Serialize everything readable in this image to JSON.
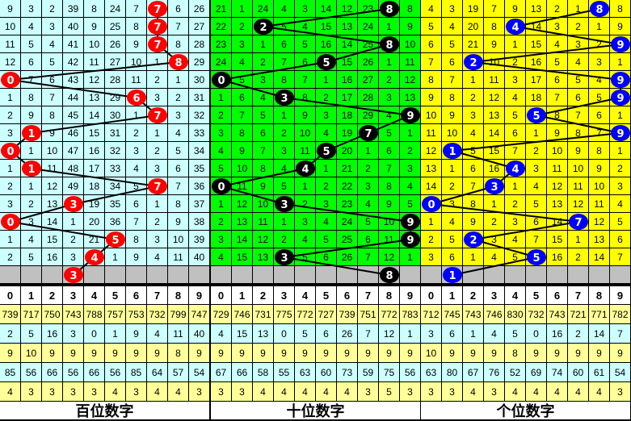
{
  "panels": [
    {
      "title": "百位数字",
      "bg": "#ccffff",
      "ball_color": "#ff0000",
      "headers": [
        "0",
        "1",
        "2",
        "3",
        "4",
        "5",
        "6",
        "7",
        "8",
        "9"
      ],
      "draws": [
        7,
        7,
        7,
        8,
        0,
        6,
        7,
        1,
        0,
        1,
        7,
        3,
        0,
        5,
        4,
        3
      ],
      "rows": [
        [
          9,
          3,
          2,
          39,
          8,
          24,
          7,
          7,
          6,
          26
        ],
        [
          10,
          4,
          3,
          40,
          9,
          25,
          8,
          7,
          7,
          27
        ],
        [
          11,
          5,
          4,
          41,
          10,
          26,
          9,
          7,
          8,
          28
        ],
        [
          12,
          6,
          5,
          42,
          11,
          27,
          10,
          1,
          8,
          29
        ],
        [
          0,
          7,
          6,
          43,
          12,
          28,
          11,
          2,
          1,
          30
        ],
        [
          1,
          8,
          7,
          44,
          13,
          29,
          6,
          3,
          2,
          31
        ],
        [
          2,
          9,
          8,
          45,
          14,
          30,
          1,
          7,
          3,
          32
        ],
        [
          3,
          1,
          9,
          46,
          15,
          31,
          2,
          1,
          4,
          33
        ],
        [
          0,
          1,
          10,
          47,
          16,
          32,
          3,
          2,
          5,
          34
        ],
        [
          1,
          1,
          11,
          48,
          17,
          33,
          4,
          3,
          6,
          35
        ],
        [
          2,
          1,
          12,
          49,
          18,
          34,
          5,
          7,
          7,
          36
        ],
        [
          3,
          2,
          13,
          3,
          19,
          35,
          6,
          1,
          8,
          37
        ],
        [
          0,
          3,
          14,
          1,
          20,
          36,
          7,
          2,
          9,
          38
        ],
        [
          1,
          4,
          15,
          2,
          21,
          5,
          8,
          3,
          10,
          39
        ],
        [
          2,
          5,
          16,
          3,
          4,
          1,
          9,
          4,
          11,
          40
        ]
      ],
      "stats": [
        [
          739,
          717,
          750,
          743,
          788,
          757,
          753,
          732,
          799,
          747
        ],
        [
          2,
          5,
          16,
          3,
          0,
          1,
          9,
          4,
          11,
          40
        ],
        [
          9,
          10,
          9,
          9,
          9,
          9,
          9,
          9,
          8,
          9
        ],
        [
          85,
          56,
          66,
          56,
          66,
          56,
          85,
          64,
          57,
          54
        ],
        [
          4,
          3,
          3,
          3,
          3,
          4,
          3,
          4,
          4,
          3
        ]
      ]
    },
    {
      "title": "十位数字",
      "bg": "#00ff00",
      "ball_color": "#000000",
      "headers": [
        "0",
        "1",
        "2",
        "3",
        "4",
        "5",
        "6",
        "7",
        "8",
        "9"
      ],
      "draws": [
        8,
        2,
        8,
        5,
        0,
        3,
        9,
        7,
        5,
        4,
        0,
        3,
        9,
        9,
        3,
        8
      ],
      "rows": [
        [
          21,
          1,
          24,
          4,
          3,
          14,
          12,
          23,
          8,
          8
        ],
        [
          22,
          2,
          2,
          5,
          4,
          15,
          13,
          24,
          1,
          9
        ],
        [
          23,
          3,
          1,
          6,
          5,
          16,
          14,
          25,
          8,
          10
        ],
        [
          24,
          4,
          2,
          7,
          6,
          5,
          15,
          26,
          1,
          11
        ],
        [
          0,
          5,
          3,
          8,
          7,
          1,
          16,
          27,
          2,
          12
        ],
        [
          1,
          6,
          4,
          3,
          8,
          2,
          17,
          28,
          3,
          13
        ],
        [
          2,
          7,
          5,
          1,
          9,
          3,
          18,
          29,
          4,
          9
        ],
        [
          3,
          8,
          6,
          2,
          10,
          4,
          19,
          7,
          5,
          1
        ],
        [
          4,
          9,
          7,
          3,
          11,
          5,
          20,
          1,
          6,
          2
        ],
        [
          5,
          10,
          8,
          4,
          4,
          1,
          21,
          2,
          7,
          3
        ],
        [
          0,
          11,
          9,
          5,
          1,
          2,
          22,
          3,
          8,
          4
        ],
        [
          1,
          12,
          10,
          3,
          2,
          3,
          23,
          4,
          9,
          5
        ],
        [
          2,
          13,
          11,
          1,
          3,
          4,
          24,
          5,
          10,
          9
        ],
        [
          3,
          14,
          12,
          2,
          4,
          5,
          25,
          6,
          11,
          9
        ],
        [
          4,
          15,
          13,
          3,
          5,
          6,
          26,
          7,
          12,
          1
        ]
      ],
      "stats": [
        [
          729,
          746,
          731,
          775,
          772,
          727,
          739,
          751,
          772,
          783
        ],
        [
          4,
          15,
          13,
          0,
          5,
          6,
          26,
          7,
          12,
          1
        ],
        [
          9,
          9,
          9,
          9,
          9,
          9,
          9,
          9,
          9,
          9
        ],
        [
          67,
          66,
          58,
          55,
          63,
          60,
          73,
          59,
          75,
          56
        ],
        [
          3,
          3,
          4,
          4,
          4,
          4,
          4,
          3,
          5,
          3
        ]
      ]
    },
    {
      "title": "个位数字",
      "bg": "#ffff00",
      "ball_color": "#0000ff",
      "headers": [
        "0",
        "1",
        "2",
        "3",
        "4",
        "5",
        "6",
        "7",
        "8",
        "9"
      ],
      "draws": [
        8,
        4,
        9,
        2,
        9,
        9,
        5,
        9,
        1,
        4,
        3,
        0,
        7,
        2,
        5,
        1
      ],
      "rows": [
        [
          4,
          3,
          19,
          7,
          9,
          13,
          2,
          1,
          8,
          8
        ],
        [
          5,
          4,
          20,
          8,
          4,
          14,
          3,
          2,
          1,
          9
        ],
        [
          6,
          5,
          21,
          9,
          1,
          15,
          4,
          3,
          2,
          9
        ],
        [
          7,
          6,
          2,
          10,
          2,
          16,
          5,
          4,
          3,
          1
        ],
        [
          8,
          7,
          1,
          11,
          3,
          17,
          6,
          5,
          4,
          9
        ],
        [
          9,
          8,
          2,
          12,
          4,
          18,
          7,
          6,
          5,
          9
        ],
        [
          10,
          9,
          3,
          13,
          5,
          5,
          8,
          7,
          6,
          1
        ],
        [
          11,
          10,
          4,
          14,
          6,
          1,
          9,
          8,
          7,
          9
        ],
        [
          12,
          1,
          5,
          15,
          7,
          2,
          10,
          9,
          8,
          1
        ],
        [
          13,
          1,
          6,
          16,
          4,
          3,
          11,
          10,
          9,
          2
        ],
        [
          14,
          2,
          7,
          3,
          1,
          4,
          12,
          11,
          10,
          3
        ],
        [
          0,
          3,
          8,
          1,
          2,
          5,
          13,
          12,
          11,
          4
        ],
        [
          1,
          4,
          9,
          2,
          3,
          6,
          14,
          7,
          12,
          5
        ],
        [
          2,
          5,
          2,
          3,
          4,
          7,
          15,
          1,
          13,
          6
        ],
        [
          3,
          6,
          1,
          4,
          5,
          5,
          16,
          2,
          14,
          7
        ]
      ],
      "stats": [
        [
          712,
          745,
          743,
          746,
          830,
          732,
          743,
          721,
          771,
          782
        ],
        [
          3,
          6,
          1,
          4,
          5,
          0,
          16,
          2,
          14,
          7
        ],
        [
          10,
          9,
          9,
          9,
          8,
          9,
          9,
          9,
          9,
          9
        ],
        [
          63,
          80,
          67,
          76,
          52,
          69,
          74,
          60,
          61,
          54
        ],
        [
          3,
          3,
          4,
          3,
          4,
          4,
          4,
          4,
          4,
          3
        ]
      ]
    }
  ],
  "colors": {
    "stat_yellow": "#ffff99",
    "stat_cyan": "#ccffff",
    "gray_row": "#c0c0c0"
  }
}
